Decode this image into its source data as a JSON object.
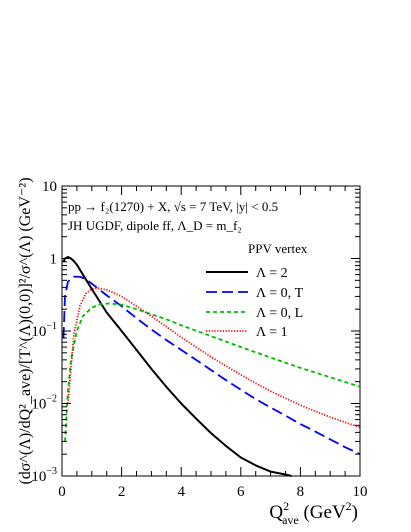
{
  "chart_data": {
    "type": "line",
    "scale": {
      "x": "linear",
      "y": "log"
    },
    "xlim": [
      0,
      10
    ],
    "ylim": [
      0.001,
      10
    ],
    "x_ticks": [
      0,
      2,
      4,
      6,
      8,
      10
    ],
    "x_tick_labels": [
      "0",
      "2",
      "4",
      "6",
      "8",
      "10"
    ],
    "y_ticks": [
      0.001,
      0.01,
      0.1,
      1,
      10
    ],
    "y_tick_labels": [
      {
        "base": "10",
        "exp": "−3"
      },
      {
        "base": "10",
        "exp": "−2"
      },
      {
        "base": "10",
        "exp": "−1"
      },
      {
        "base": "1",
        "exp": ""
      },
      {
        "base": "10",
        "exp": ""
      }
    ],
    "xlabel": {
      "main": "Q",
      "sup": "2",
      "sub": "ave",
      "units_pre": " (GeV",
      "units_sup": "2",
      "units_post": ")"
    },
    "ylabel": "(dσ^(Λ)/dQ²_ave)/[T^(Λ)(0,0)]²/σ^(Λ) (GeV⁻²)",
    "annotation_lines": [
      "pp → f₂(1270) + X,  √s = 7 TeV,  |y| < 0.5",
      "JH UGDF, dipole ff, Λ_D = m_f₂"
    ],
    "legend_title": "PPV vertex",
    "legend_position": "upper-right",
    "grid": false,
    "series": [
      {
        "name": "Λ = 2",
        "color": "#000000",
        "dash": "solid",
        "x": [
          0.05,
          0.1,
          0.2,
          0.3,
          0.4,
          0.5,
          0.7,
          1.0,
          1.5,
          2.0,
          2.5,
          3.0,
          3.5,
          4.0,
          4.5,
          5.0,
          5.5,
          6.0,
          6.5,
          7.0,
          7.5,
          7.7
        ],
        "y": [
          0.9,
          1.0,
          1.05,
          1.0,
          0.92,
          0.82,
          0.6,
          0.38,
          0.18,
          0.1,
          0.055,
          0.03,
          0.017,
          0.01,
          0.0062,
          0.0039,
          0.0026,
          0.0018,
          0.0014,
          0.00115,
          0.00105,
          0.001
        ]
      },
      {
        "name": "Λ = 0, T",
        "color": "#0000ff",
        "dash": "long-dash",
        "x": [
          0.05,
          0.1,
          0.2,
          0.4,
          0.6,
          0.8,
          1.0,
          1.5,
          2.0,
          2.5,
          3.0,
          3.5,
          4.0,
          4.5,
          5.0,
          5.5,
          6.0,
          6.5,
          7.0,
          7.5,
          8.0,
          8.5,
          9.0,
          9.5,
          10.0
        ],
        "y": [
          0.08,
          0.3,
          0.48,
          0.56,
          0.56,
          0.52,
          0.45,
          0.31,
          0.22,
          0.15,
          0.105,
          0.075,
          0.055,
          0.04,
          0.029,
          0.021,
          0.0155,
          0.0115,
          0.0088,
          0.0068,
          0.0052,
          0.0041,
          0.0032,
          0.0025,
          0.002
        ]
      },
      {
        "name": "Λ = 0, L",
        "color": "#00bb00",
        "dash": "short-dash",
        "x": [
          0.1,
          0.2,
          0.3,
          0.5,
          0.7,
          1.0,
          1.3,
          1.6,
          2.0,
          2.5,
          3.0,
          3.5,
          4.0,
          5.0,
          6.0,
          7.0,
          8.0,
          9.0,
          10.0
        ],
        "y": [
          0.003,
          0.015,
          0.04,
          0.1,
          0.16,
          0.21,
          0.235,
          0.24,
          0.23,
          0.2,
          0.17,
          0.145,
          0.12,
          0.085,
          0.06,
          0.043,
          0.031,
          0.023,
          0.017
        ]
      },
      {
        "name": "Λ = 1",
        "color": "#ff0000",
        "dash": "dotted",
        "x": [
          0.2,
          0.4,
          0.6,
          0.8,
          1.0,
          1.2,
          1.5,
          2.0,
          2.5,
          3.0,
          3.5,
          4.0,
          4.5,
          5.0,
          5.5,
          6.0,
          6.5,
          7.0,
          7.5,
          8.0,
          8.5,
          9.0,
          9.5,
          10.0
        ],
        "y": [
          0.01,
          0.09,
          0.22,
          0.33,
          0.38,
          0.39,
          0.37,
          0.3,
          0.22,
          0.16,
          0.115,
          0.082,
          0.06,
          0.044,
          0.033,
          0.025,
          0.019,
          0.0148,
          0.0118,
          0.0095,
          0.0078,
          0.0065,
          0.0055,
          0.0047
        ]
      }
    ]
  }
}
